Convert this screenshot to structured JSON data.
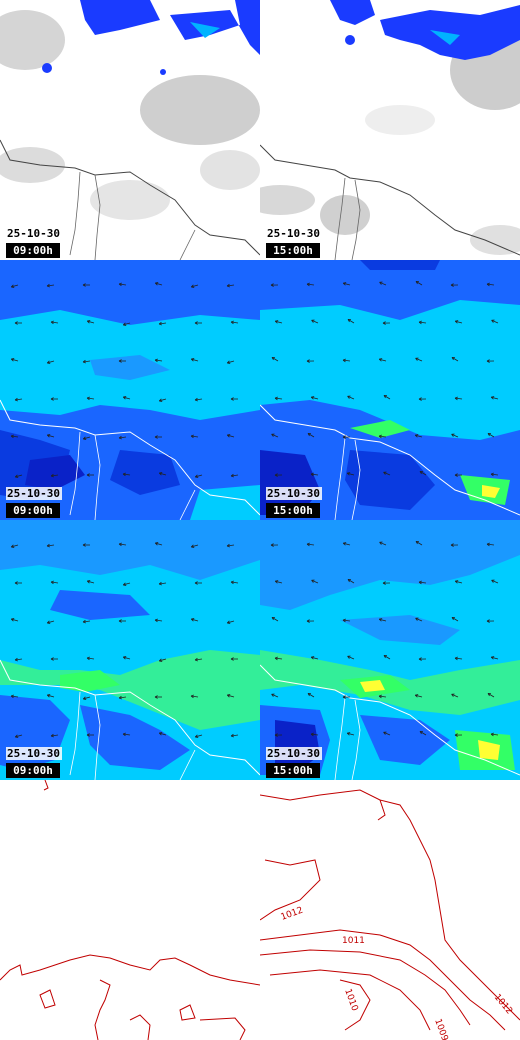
{
  "panels": [
    {
      "id": "cloud-0900",
      "date": "25-10-30",
      "time": "09:00h"
    },
    {
      "id": "cloud-1500",
      "date": "25-10-30",
      "time": "15:00h"
    },
    {
      "id": "humidity-0900",
      "date": "25-10-30",
      "time": "09:00h"
    },
    {
      "id": "humidity-1500",
      "date": "25-10-30",
      "time": "15:00h"
    },
    {
      "id": "wind-0900",
      "date": "25-10-30",
      "time": "09:00h"
    },
    {
      "id": "wind-1500",
      "date": "25-10-30",
      "time": "15:00h"
    }
  ],
  "isobars": [
    "1012",
    "1011",
    "1010",
    "1009",
    "1012"
  ],
  "colors": {
    "cloud_blue": "#1a3bff",
    "cloud_gray": "#c8c8c8",
    "field_dark": "#0a22c8",
    "field_blue": "#1a66ff",
    "field_cyan": "#00ccff",
    "field_green": "#33ff66",
    "field_yellow": "#ffff33",
    "coast": "#444444",
    "isobar": "#c00000"
  }
}
